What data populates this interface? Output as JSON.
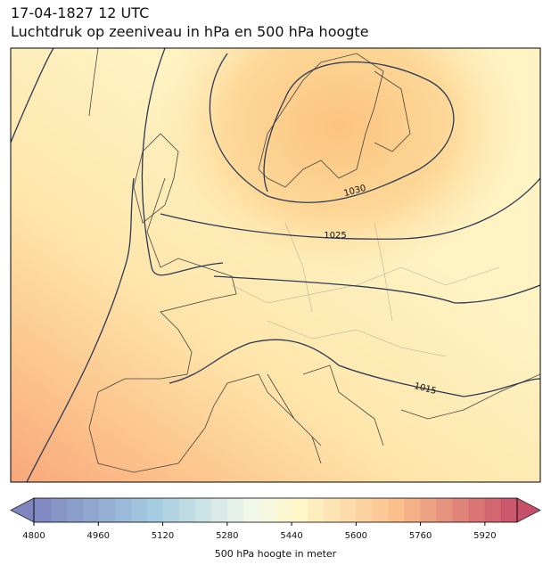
{
  "header": {
    "date": "17-04-1827 12 UTC",
    "title": "Luchtdruk op zeeniveau in hPa en 500 hPa hoogte"
  },
  "map": {
    "contour_labels": [
      "1030",
      "1025",
      "1015"
    ]
  },
  "colorbar": {
    "range": [
      4800,
      6000
    ],
    "ticks": [
      4800,
      4960,
      5120,
      5280,
      5440,
      5600,
      5760,
      5920
    ],
    "label": "500 hPa hoogte in meter"
  }
}
